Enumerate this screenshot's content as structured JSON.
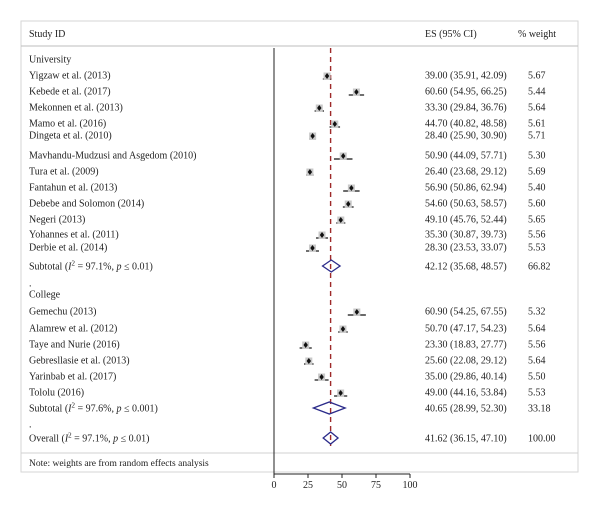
{
  "header": {
    "study": "Study ID",
    "es": "ES (95% CI)",
    "weight": "% weight"
  },
  "note": "Note: weights are from random effects analysis",
  "chart_data": {
    "type": "forest",
    "xlim": [
      0,
      100
    ],
    "xticks": [
      "0",
      "25",
      "50",
      "75",
      "100"
    ],
    "reference_line": 41.62,
    "rows": [
      {
        "kind": "group",
        "label": "University"
      },
      {
        "kind": "study",
        "label": "Yigzaw et al. (2013)",
        "es": 39.0,
        "lo": 35.91,
        "hi": 42.09,
        "ci_text": "39.00 (35.91, 42.09)",
        "weight": "5.67"
      },
      {
        "kind": "study",
        "label": "Kebede et al. (2017)",
        "es": 60.6,
        "lo": 54.95,
        "hi": 66.25,
        "ci_text": "60.60 (54.95, 66.25)",
        "weight": "5.44"
      },
      {
        "kind": "study",
        "label": "Mekonnen et al. (2013)",
        "es": 33.3,
        "lo": 29.84,
        "hi": 36.76,
        "ci_text": "33.30 (29.84, 36.76)",
        "weight": "5.64"
      },
      {
        "kind": "study",
        "label": "Mamo et al. (2016)",
        "es": 44.7,
        "lo": 40.82,
        "hi": 48.58,
        "ci_text": "44.70 (40.82, 48.58)",
        "weight": "5.61"
      },
      {
        "kind": "study",
        "label": "Dingeta et al. (2010)",
        "es": 28.4,
        "lo": 25.9,
        "hi": 30.9,
        "ci_text": "28.40 (25.90, 30.90)",
        "weight": "5.71"
      },
      {
        "kind": "study",
        "label": "Mavhandu-Mudzusi and Asgedom (2010)",
        "es": 50.9,
        "lo": 44.09,
        "hi": 57.71,
        "ci_text": "50.90 (44.09, 57.71)",
        "weight": "5.30"
      },
      {
        "kind": "study",
        "label": "Tura et al. (2009)",
        "es": 26.4,
        "lo": 23.68,
        "hi": 29.12,
        "ci_text": "26.40 (23.68, 29.12)",
        "weight": "5.69"
      },
      {
        "kind": "study",
        "label": "Fantahun et al. (2013)",
        "es": 56.9,
        "lo": 50.86,
        "hi": 62.94,
        "ci_text": "56.90 (50.86, 62.94)",
        "weight": "5.40"
      },
      {
        "kind": "study",
        "label": "Debebe and Solomon (2014)",
        "es": 54.6,
        "lo": 50.63,
        "hi": 58.57,
        "ci_text": "54.60 (50.63, 58.57)",
        "weight": "5.60"
      },
      {
        "kind": "study",
        "label": "Negeri (2013)",
        "es": 49.1,
        "lo": 45.76,
        "hi": 52.44,
        "ci_text": "49.10 (45.76, 52.44)",
        "weight": "5.65"
      },
      {
        "kind": "study",
        "label": "Yohannes et al. (2011)",
        "es": 35.3,
        "lo": 30.87,
        "hi": 39.73,
        "ci_text": "35.30 (30.87, 39.73)",
        "weight": "5.56"
      },
      {
        "kind": "study",
        "label": "Derbie et al. (2014)",
        "es": 28.3,
        "lo": 23.53,
        "hi": 33.07,
        "ci_text": "28.30 (23.53, 33.07)",
        "weight": "5.53"
      },
      {
        "kind": "subtotal",
        "label": "Subtotal (",
        "i2": "2",
        "stat": " = 97.1%, ",
        "p": "p",
        "ptail": " ≤ 0.01)",
        "es": 42.12,
        "lo": 35.68,
        "hi": 48.57,
        "ci_text": "42.12 (35.68, 48.57)",
        "weight": "66.82"
      },
      {
        "kind": "dot",
        "label": "."
      },
      {
        "kind": "group",
        "label": "College"
      },
      {
        "kind": "study",
        "label": "Gemechu (2013)",
        "es": 60.9,
        "lo": 54.25,
        "hi": 67.55,
        "ci_text": "60.90 (54.25, 67.55)",
        "weight": "5.32"
      },
      {
        "kind": "study",
        "label": "Alamrew et al. (2012)",
        "es": 50.7,
        "lo": 47.17,
        "hi": 54.23,
        "ci_text": "50.70 (47.17, 54.23)",
        "weight": "5.64"
      },
      {
        "kind": "study",
        "label": "Taye and Nurie (2016)",
        "es": 23.3,
        "lo": 18.83,
        "hi": 27.77,
        "ci_text": "23.30 (18.83, 27.77)",
        "weight": "5.56"
      },
      {
        "kind": "study",
        "label": "Gebresllasie et al. (2013)",
        "es": 25.6,
        "lo": 22.08,
        "hi": 29.12,
        "ci_text": "25.60 (22.08, 29.12)",
        "weight": "5.64"
      },
      {
        "kind": "study",
        "label": "Yarinbab et al. (2017)",
        "es": 35.0,
        "lo": 29.86,
        "hi": 40.14,
        "ci_text": "35.00 (29.86, 40.14)",
        "weight": "5.50"
      },
      {
        "kind": "study",
        "label": "Tololu (2016)",
        "es": 49.0,
        "lo": 44.16,
        "hi": 53.84,
        "ci_text": "49.00 (44.16, 53.84)",
        "weight": "5.53"
      },
      {
        "kind": "subtotal",
        "label": "Subtotal (",
        "i2": "2",
        "stat": " = 97.6%, ",
        "p": "p",
        "ptail": " ≤ 0.001)",
        "es": 40.65,
        "lo": 28.99,
        "hi": 52.3,
        "ci_text": "40.65 (28.99, 52.30)",
        "weight": "33.18"
      },
      {
        "kind": "dot",
        "label": "."
      },
      {
        "kind": "subtotal",
        "label": "Overall (",
        "i2": "2",
        "stat": " = 97.1%, ",
        "p": "p",
        "ptail": " ≤ 0.01)",
        "es": 41.62,
        "lo": 36.15,
        "hi": 47.1,
        "ci_text": "41.62 (36.15, 47.10)",
        "weight": "100.00"
      }
    ]
  }
}
